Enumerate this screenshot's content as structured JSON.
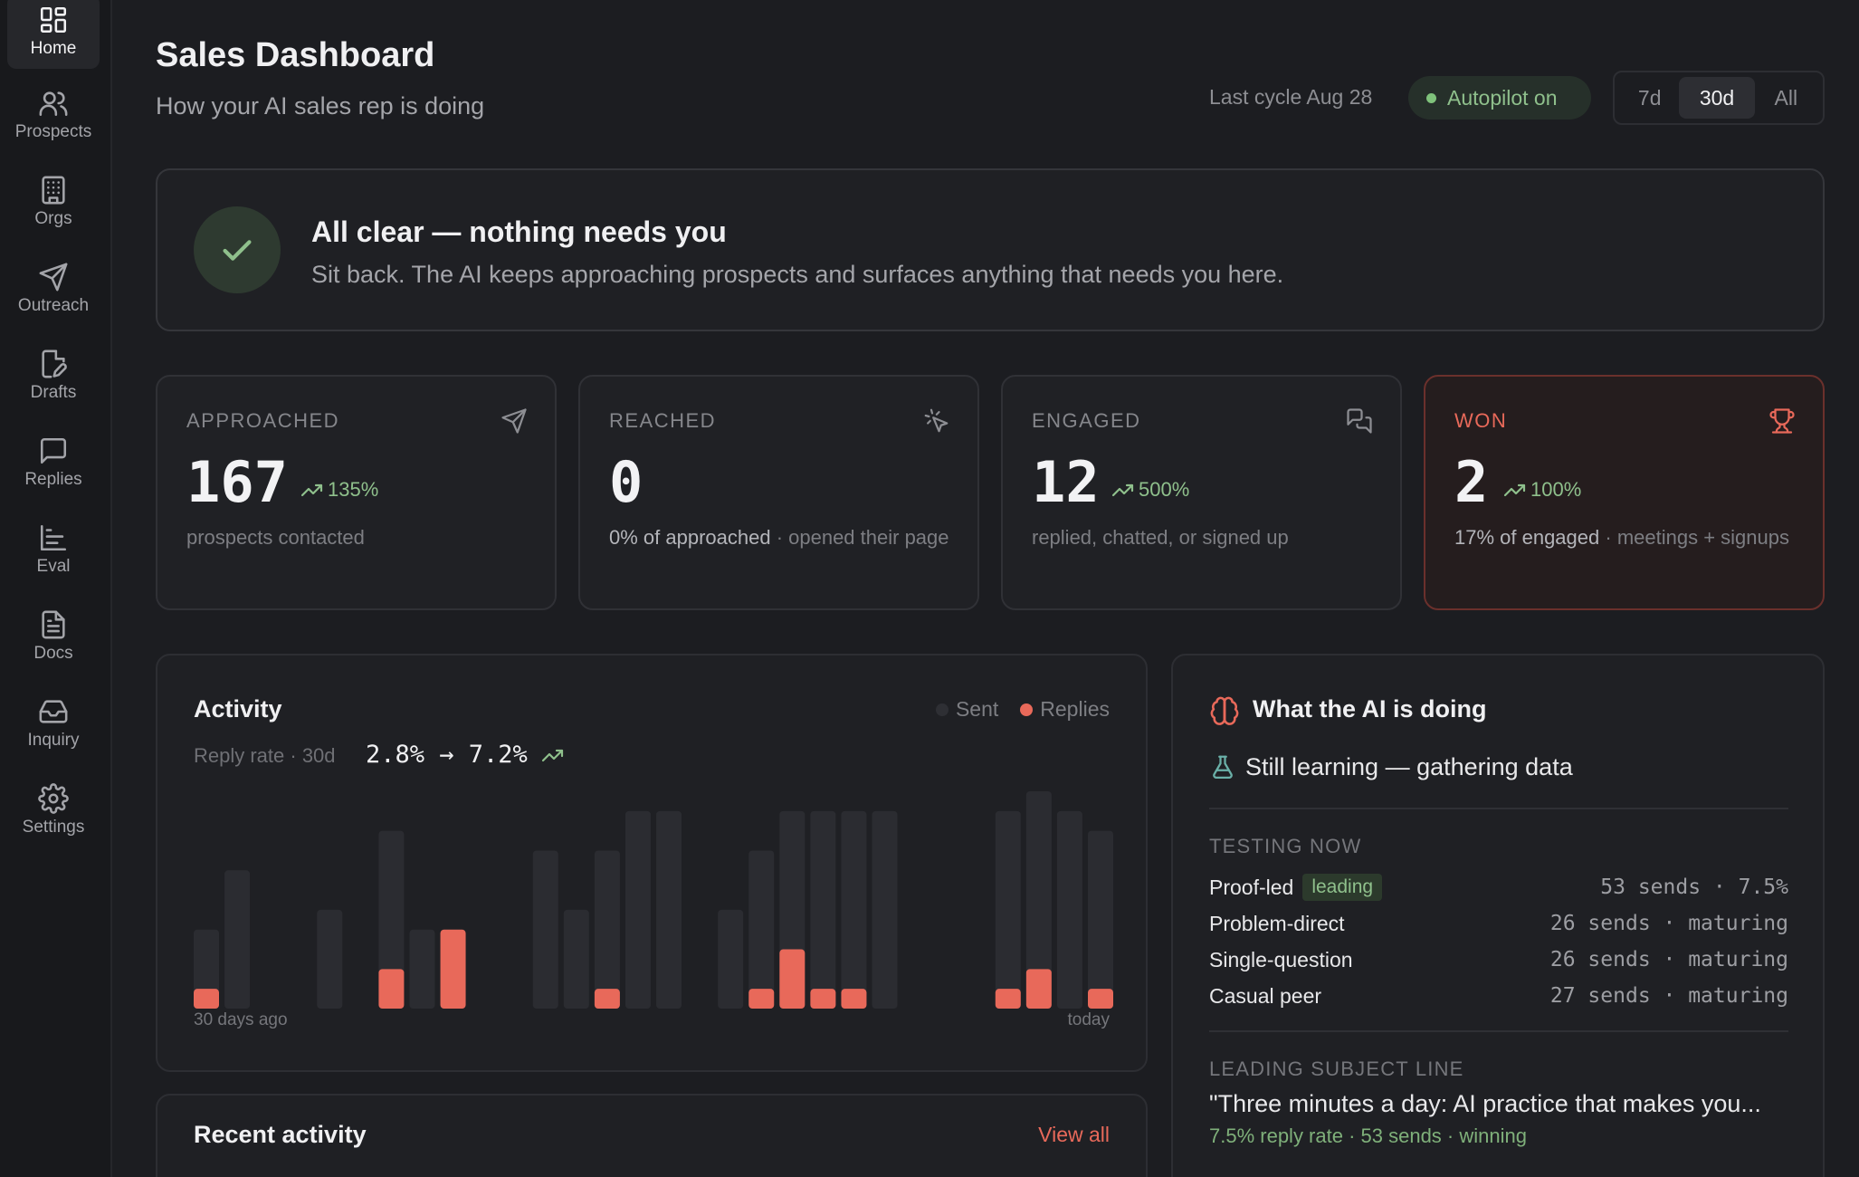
{
  "sidebar": {
    "items": [
      {
        "label": "Home",
        "icon": "grid-icon",
        "active": true
      },
      {
        "label": "Prospects",
        "icon": "users-icon"
      },
      {
        "label": "Orgs",
        "icon": "building-icon"
      },
      {
        "label": "Outreach",
        "icon": "send-icon"
      },
      {
        "label": "Drafts",
        "icon": "file-edit-icon"
      },
      {
        "label": "Replies",
        "icon": "message-icon"
      },
      {
        "label": "Eval",
        "icon": "bar-chart-icon"
      },
      {
        "label": "Docs",
        "icon": "document-icon"
      },
      {
        "label": "Inquiry",
        "icon": "inbox-icon"
      },
      {
        "label": "Settings",
        "icon": "gear-icon"
      }
    ]
  },
  "header": {
    "title": "Sales Dashboard",
    "subtitle": "How your AI sales rep is doing",
    "last_cycle": "Last cycle Aug 28",
    "autopilot": "Autopilot on",
    "ranges": [
      "7d",
      "30d",
      "All"
    ],
    "selected_range": "30d"
  },
  "banner": {
    "title": "All clear — nothing needs you",
    "text": "Sit back. The AI keeps approaching prospects and surfaces anything that needs you here."
  },
  "stats": [
    {
      "label": "APPROACHED",
      "value": "167",
      "trend": "135%",
      "desc_strong": "",
      "desc": "prospects contacted",
      "icon": "send-icon"
    },
    {
      "label": "REACHED",
      "value": "0",
      "trend": "",
      "desc_strong": "0% of approached",
      "desc": " · opened their page",
      "icon": "click-icon"
    },
    {
      "label": "ENGAGED",
      "value": "12",
      "trend": "500%",
      "desc_strong": "",
      "desc": "replied, chatted, or signed up",
      "icon": "chat-icon"
    },
    {
      "label": "WON",
      "value": "2",
      "trend": "100%",
      "desc_strong": "17% of engaged",
      "desc": " · meetings + signups",
      "icon": "trophy-icon"
    }
  ],
  "activity": {
    "title": "Activity",
    "legend_sent": "Sent",
    "legend_replies": "Replies",
    "reply_rate_label": "Reply rate · 30d",
    "reply_rate_values": "2.8% → 7.2%",
    "axis_start": "30 days ago",
    "axis_end": "today"
  },
  "chart_data": {
    "type": "bar",
    "x": [
      "d1",
      "d2",
      "d3",
      "d4",
      "d5",
      "d6",
      "d7",
      "d8",
      "d9",
      "d10",
      "d11",
      "d12",
      "d13",
      "d14",
      "d15",
      "d16",
      "d17",
      "d18",
      "d19",
      "d20",
      "d21",
      "d22",
      "d23",
      "d24",
      "d25",
      "d26",
      "d27",
      "d28",
      "d29",
      "d30"
    ],
    "series": [
      {
        "name": "Sent",
        "values": [
          4,
          7,
          0,
          0,
          5,
          0,
          9,
          4,
          4,
          0,
          0,
          8,
          5,
          8,
          10,
          10,
          0,
          5,
          8,
          10,
          10,
          10,
          10,
          0,
          0,
          0,
          10,
          11,
          10,
          9
        ]
      },
      {
        "name": "Replies",
        "values": [
          1,
          0,
          0,
          0,
          0,
          0,
          2,
          0,
          4,
          0,
          0,
          0,
          0,
          1,
          0,
          0,
          0,
          0,
          1,
          3,
          1,
          1,
          0,
          0,
          0,
          0,
          1,
          2,
          0,
          1
        ]
      }
    ],
    "colors": {
      "sent": "#2b2c31",
      "replies": "#e8695a"
    }
  },
  "recent": {
    "title": "Recent activity",
    "view_all": "View all"
  },
  "ai": {
    "title": "What the AI is doing",
    "status": "Still learning — gathering data",
    "testing_label": "TESTING NOW",
    "tests": [
      {
        "name": "Proof-led",
        "badge": "leading",
        "stat": "53 sends · 7.5%"
      },
      {
        "name": "Problem-direct",
        "badge": "",
        "stat": "26 sends · maturing"
      },
      {
        "name": "Single-question",
        "badge": "",
        "stat": "26 sends · maturing"
      },
      {
        "name": "Casual peer",
        "badge": "",
        "stat": "27 sends · maturing"
      }
    ],
    "subject_label": "LEADING SUBJECT LINE",
    "subject": "\"Three minutes a day: AI practice that makes you...",
    "subject_meta": "7.5% reply rate · 53 sends · winning"
  }
}
